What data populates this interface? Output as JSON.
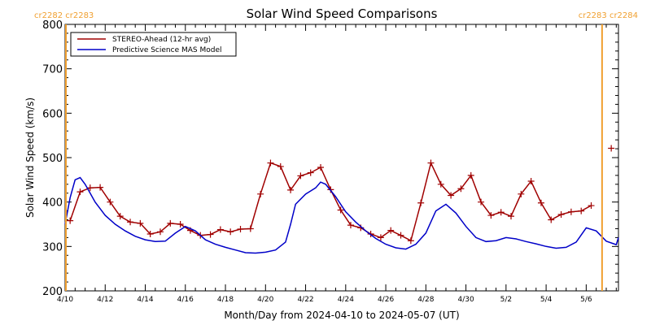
{
  "chart_data": {
    "type": "line",
    "title": "Solar Wind Speed Comparisons",
    "xlabel": "Month/Day from 2024-04-10 to 2024-05-07 (UT)",
    "ylabel": "Solar Wind Speed (km/s)",
    "xlim": [
      "2024-04-10",
      "2024-05-07"
    ],
    "ylim": [
      200,
      800
    ],
    "y_ticks": [
      200,
      300,
      400,
      500,
      600,
      700,
      800
    ],
    "x_ticks": [
      {
        "date": "2024-04-10",
        "label": "4/10"
      },
      {
        "date": "2024-04-12",
        "label": "4/12"
      },
      {
        "date": "2024-04-14",
        "label": "4/14"
      },
      {
        "date": "2024-04-16",
        "label": "4/16"
      },
      {
        "date": "2024-04-18",
        "label": "4/18"
      },
      {
        "date": "2024-04-20",
        "label": "4/20"
      },
      {
        "date": "2024-04-22",
        "label": "4/22"
      },
      {
        "date": "2024-04-24",
        "label": "4/24"
      },
      {
        "date": "2024-04-26",
        "label": "4/26"
      },
      {
        "date": "2024-04-28",
        "label": "4/28"
      },
      {
        "date": "2024-04-30",
        "label": "4/30"
      },
      {
        "date": "2024-05-02",
        "label": "5/2"
      },
      {
        "date": "2024-05-04",
        "label": "5/4"
      },
      {
        "date": "2024-05-06",
        "label": "5/6"
      }
    ],
    "legend_position": "top-left",
    "carrington_labels": {
      "left": "cr2282 cr2283",
      "right": "cr2283 cr2284",
      "boundary_line_date": "2024-05-06T19:00:00"
    },
    "series": [
      {
        "name": "STEREO-Ahead (12-hr avg)",
        "color": "#a00000",
        "marker": "plus",
        "points": [
          [
            "2024-04-10T06:00:00",
            358
          ],
          [
            "2024-04-10T18:00:00",
            423
          ],
          [
            "2024-04-11T06:00:00",
            432
          ],
          [
            "2024-04-11T18:00:00",
            433
          ],
          [
            "2024-04-12T06:00:00",
            400
          ],
          [
            "2024-04-12T18:00:00",
            368
          ],
          [
            "2024-04-13T06:00:00",
            355
          ],
          [
            "2024-04-13T18:00:00",
            352
          ],
          [
            "2024-04-14T06:00:00",
            328
          ],
          [
            "2024-04-14T18:00:00",
            333
          ],
          [
            "2024-04-15T06:00:00",
            352
          ],
          [
            "2024-04-15T18:00:00",
            350
          ],
          [
            "2024-04-16T06:00:00",
            336
          ],
          [
            "2024-04-16T18:00:00",
            325
          ],
          [
            "2024-04-17T06:00:00",
            327
          ],
          [
            "2024-04-17T18:00:00",
            338
          ],
          [
            "2024-04-18T06:00:00",
            333
          ],
          [
            "2024-04-18T18:00:00",
            339
          ],
          [
            "2024-04-19T06:00:00",
            340
          ],
          [
            "2024-04-19T18:00:00",
            418
          ],
          [
            "2024-04-20T06:00:00",
            488
          ],
          [
            "2024-04-20T18:00:00",
            480
          ],
          [
            "2024-04-21T06:00:00",
            427
          ],
          [
            "2024-04-21T18:00:00",
            459
          ],
          [
            "2024-04-22T06:00:00",
            466
          ],
          [
            "2024-04-22T18:00:00",
            478
          ],
          [
            "2024-04-23T06:00:00",
            428
          ],
          [
            "2024-04-23T18:00:00",
            382
          ],
          [
            "2024-04-24T06:00:00",
            348
          ],
          [
            "2024-04-24T18:00:00",
            342
          ],
          [
            "2024-04-25T06:00:00",
            328
          ],
          [
            "2024-04-25T18:00:00",
            320
          ],
          [
            "2024-04-26T06:00:00",
            336
          ],
          [
            "2024-04-26T18:00:00",
            325
          ],
          [
            "2024-04-27T06:00:00",
            313
          ],
          [
            "2024-04-27T18:00:00",
            398
          ],
          [
            "2024-04-28T06:00:00",
            488
          ],
          [
            "2024-04-28T18:00:00",
            440
          ],
          [
            "2024-04-29T06:00:00",
            415
          ],
          [
            "2024-04-29T18:00:00",
            430
          ],
          [
            "2024-04-30T06:00:00",
            460
          ],
          [
            "2024-04-30T18:00:00",
            400
          ],
          [
            "2024-05-01T06:00:00",
            370
          ],
          [
            "2024-05-01T18:00:00",
            377
          ],
          [
            "2024-05-02T06:00:00",
            368
          ],
          [
            "2024-05-02T18:00:00",
            418
          ],
          [
            "2024-05-03T06:00:00",
            447
          ],
          [
            "2024-05-03T18:00:00",
            398
          ],
          [
            "2024-05-04T06:00:00",
            360
          ],
          [
            "2024-05-04T18:00:00",
            372
          ],
          [
            "2024-05-05T06:00:00",
            378
          ],
          [
            "2024-05-05T18:00:00",
            380
          ],
          [
            "2024-05-06T06:00:00",
            392
          ]
        ],
        "extra_points": [
          [
            "2024-05-07T06:00:00",
            521
          ]
        ]
      },
      {
        "name": "Predictive Science MAS Model",
        "color": "#0000c8",
        "points": [
          [
            "2024-04-10T00:00:00",
            350
          ],
          [
            "2024-04-10T06:00:00",
            410
          ],
          [
            "2024-04-10T12:00:00",
            450
          ],
          [
            "2024-04-10T18:00:00",
            455
          ],
          [
            "2024-04-11T00:00:00",
            440
          ],
          [
            "2024-04-11T06:00:00",
            420
          ],
          [
            "2024-04-11T12:00:00",
            400
          ],
          [
            "2024-04-12T00:00:00",
            370
          ],
          [
            "2024-04-12T12:00:00",
            350
          ],
          [
            "2024-04-13T00:00:00",
            335
          ],
          [
            "2024-04-13T12:00:00",
            323
          ],
          [
            "2024-04-14T00:00:00",
            315
          ],
          [
            "2024-04-14T12:00:00",
            311
          ],
          [
            "2024-04-15T00:00:00",
            312
          ],
          [
            "2024-04-15T12:00:00",
            330
          ],
          [
            "2024-04-16T00:00:00",
            345
          ],
          [
            "2024-04-16T12:00:00",
            335
          ],
          [
            "2024-04-17T00:00:00",
            315
          ],
          [
            "2024-04-17T12:00:00",
            305
          ],
          [
            "2024-04-18T00:00:00",
            298
          ],
          [
            "2024-04-18T12:00:00",
            292
          ],
          [
            "2024-04-19T00:00:00",
            286
          ],
          [
            "2024-04-19T12:00:00",
            285
          ],
          [
            "2024-04-20T00:00:00",
            287
          ],
          [
            "2024-04-20T12:00:00",
            292
          ],
          [
            "2024-04-21T00:00:00",
            310
          ],
          [
            "2024-04-21T06:00:00",
            350
          ],
          [
            "2024-04-21T12:00:00",
            395
          ],
          [
            "2024-04-22T00:00:00",
            418
          ],
          [
            "2024-04-22T12:00:00",
            432
          ],
          [
            "2024-04-22T18:00:00",
            445
          ],
          [
            "2024-04-23T00:00:00",
            440
          ],
          [
            "2024-04-23T12:00:00",
            412
          ],
          [
            "2024-04-24T00:00:00",
            378
          ],
          [
            "2024-04-24T12:00:00",
            355
          ],
          [
            "2024-04-25T00:00:00",
            335
          ],
          [
            "2024-04-25T12:00:00",
            318
          ],
          [
            "2024-04-26T00:00:00",
            305
          ],
          [
            "2024-04-26T12:00:00",
            297
          ],
          [
            "2024-04-27T00:00:00",
            294
          ],
          [
            "2024-04-27T12:00:00",
            305
          ],
          [
            "2024-04-28T00:00:00",
            330
          ],
          [
            "2024-04-28T12:00:00",
            380
          ],
          [
            "2024-04-29T00:00:00",
            395
          ],
          [
            "2024-04-29T12:00:00",
            375
          ],
          [
            "2024-04-30T00:00:00",
            345
          ],
          [
            "2024-04-30T12:00:00",
            320
          ],
          [
            "2024-05-01T00:00:00",
            311
          ],
          [
            "2024-05-01T12:00:00",
            313
          ],
          [
            "2024-05-02T00:00:00",
            320
          ],
          [
            "2024-05-02T12:00:00",
            317
          ],
          [
            "2024-05-03T00:00:00",
            311
          ],
          [
            "2024-05-03T12:00:00",
            306
          ],
          [
            "2024-05-04T00:00:00",
            300
          ],
          [
            "2024-05-04T12:00:00",
            296
          ],
          [
            "2024-05-05T00:00:00",
            298
          ],
          [
            "2024-05-05T12:00:00",
            310
          ],
          [
            "2024-05-06T00:00:00",
            342
          ],
          [
            "2024-05-06T12:00:00",
            335
          ],
          [
            "2024-05-07T00:00:00",
            312
          ],
          [
            "2024-05-07T12:00:00",
            304
          ],
          [
            "2024-05-08T00:00:00",
            320
          ]
        ]
      }
    ]
  }
}
